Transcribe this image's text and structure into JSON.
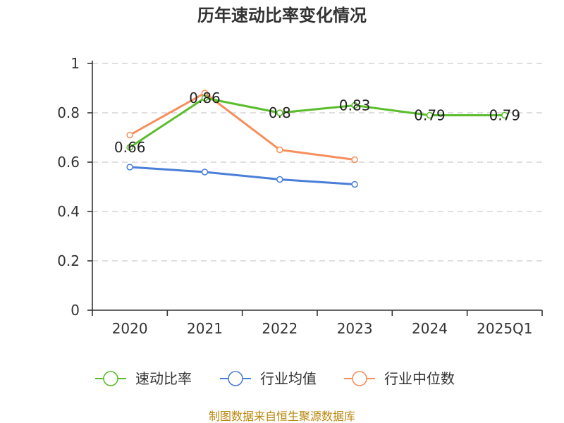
{
  "chart_data": {
    "type": "line",
    "title": "历年速动比率变化情况",
    "xlabel": "",
    "ylabel": "",
    "categories": [
      "2020",
      "2021",
      "2022",
      "2023",
      "2024",
      "2025Q1"
    ],
    "ylim": [
      0,
      1
    ],
    "yticks": [
      0,
      0.2,
      0.4,
      0.6,
      0.8,
      1
    ],
    "ytick_labels": [
      "0",
      "0.2",
      "0.4",
      "0.6",
      "0.8",
      "1"
    ],
    "grid": true,
    "legend_position": "bottom",
    "series": [
      {
        "name": "速动比率",
        "color": "#5bbd2b",
        "values": [
          0.66,
          0.86,
          0.8,
          0.83,
          0.79,
          0.79
        ],
        "labels": [
          "0.66",
          "0.86",
          "0.8",
          "0.83",
          "0.79",
          "0.79"
        ]
      },
      {
        "name": "行业均值",
        "color": "#4a7fd8",
        "values": [
          0.58,
          0.56,
          0.53,
          0.51,
          null,
          null
        ]
      },
      {
        "name": "行业中位数",
        "color": "#f58f5c",
        "values": [
          0.71,
          0.88,
          0.65,
          0.61,
          null,
          null
        ]
      }
    ],
    "source": "制图数据来自恒生聚源数据库"
  }
}
